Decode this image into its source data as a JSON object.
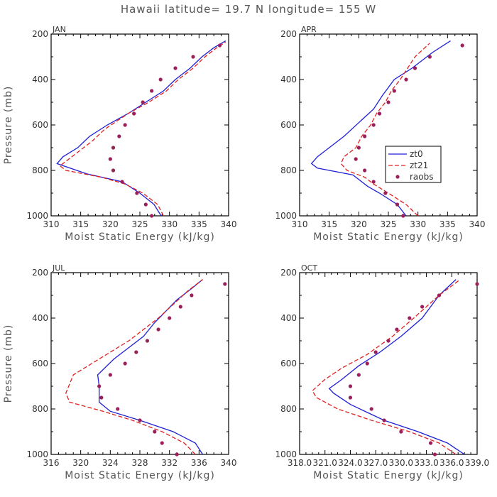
{
  "title": "Hawaii  latitude= 19.7 N longitude= 155 W",
  "colors": {
    "zt0": "#1f1fd6",
    "zt21": "#e02020",
    "raobs": "#9b1f5a"
  },
  "legend": {
    "entries": [
      "zt0",
      "zt21",
      "raobs"
    ],
    "panel": 1,
    "placement": "right-center"
  },
  "chart_data": [
    {
      "type": "line",
      "panel_title": "JAN",
      "xlabel": "Moist Static Energy (kJ/kg)",
      "ylabel": "Pressure (mb)",
      "xlim": [
        310,
        340
      ],
      "ylim": [
        1000,
        200
      ],
      "xticks": [
        310,
        315,
        320,
        325,
        330,
        335,
        340
      ],
      "xticklabels": [
        "310",
        "315",
        "320",
        "325",
        "330",
        "335",
        "340"
      ],
      "yticks": [
        200,
        400,
        600,
        800,
        1000
      ],
      "yticklabels": [
        "200",
        "400",
        "600",
        "800",
        "1000"
      ],
      "series": [
        {
          "name": "zt0",
          "style": "solid",
          "points": [
            [
              328.6,
              1000
            ],
            [
              327.4,
              950
            ],
            [
              325.0,
              900
            ],
            [
              322.0,
              850
            ],
            [
              316.0,
              815
            ],
            [
              311.0,
              770
            ],
            [
              312.0,
              740
            ],
            [
              314.5,
              700
            ],
            [
              316.5,
              650
            ],
            [
              319.5,
              600
            ],
            [
              323.0,
              550
            ],
            [
              326.0,
              500
            ],
            [
              329.0,
              450
            ],
            [
              331.0,
              400
            ],
            [
              333.5,
              350
            ],
            [
              335.5,
              300
            ],
            [
              337.5,
              260
            ],
            [
              339.5,
              230
            ]
          ]
        },
        {
          "name": "zt21",
          "style": "dashed",
          "points": [
            [
              329.0,
              1000
            ],
            [
              328.0,
              950
            ],
            [
              325.5,
              900
            ],
            [
              322.5,
              860
            ],
            [
              318.5,
              830
            ],
            [
              312.5,
              800
            ],
            [
              311.5,
              780
            ],
            [
              312.5,
              760
            ],
            [
              314.5,
              720
            ],
            [
              317.0,
              670
            ],
            [
              319.0,
              620
            ],
            [
              323.0,
              550
            ],
            [
              326.5,
              500
            ],
            [
              329.5,
              450
            ],
            [
              331.5,
              400
            ],
            [
              334.0,
              350
            ],
            [
              336.0,
              300
            ],
            [
              338.0,
              260
            ],
            [
              339.5,
              235
            ]
          ]
        },
        {
          "name": "raobs",
          "style": "markers",
          "points": [
            [
              327.0,
              1000
            ],
            [
              326.0,
              950
            ],
            [
              324.5,
              900
            ],
            [
              322.0,
              850
            ],
            [
              320.5,
              800
            ],
            [
              320.0,
              750
            ],
            [
              320.5,
              700
            ],
            [
              321.5,
              650
            ],
            [
              322.5,
              600
            ],
            [
              324.0,
              550
            ],
            [
              325.5,
              500
            ],
            [
              327.0,
              450
            ],
            [
              328.5,
              400
            ],
            [
              331.0,
              350
            ],
            [
              334.0,
              300
            ],
            [
              338.5,
              250
            ]
          ]
        }
      ]
    },
    {
      "type": "line",
      "panel_title": "APR",
      "xlabel": "Moist Static Energy (kJ/kg)",
      "ylabel": "",
      "xlim": [
        310,
        340
      ],
      "ylim": [
        1000,
        200
      ],
      "xticks": [
        310,
        315,
        320,
        325,
        330,
        335,
        340
      ],
      "xticklabels": [
        "310",
        "315",
        "320",
        "325",
        "330",
        "335",
        "340"
      ],
      "yticks": [
        200,
        400,
        600,
        800,
        1000
      ],
      "yticklabels": [
        "200",
        "400",
        "600",
        "800",
        "1000"
      ],
      "series": [
        {
          "name": "zt0",
          "style": "solid",
          "points": [
            [
              328.0,
              1000
            ],
            [
              326.5,
              950
            ],
            [
              323.5,
              900
            ],
            [
              321.5,
              870
            ],
            [
              319.0,
              820
            ],
            [
              313.0,
              790
            ],
            [
              312.0,
              770
            ],
            [
              313.0,
              740
            ],
            [
              315.0,
              700
            ],
            [
              317.5,
              650
            ],
            [
              320.0,
              590
            ],
            [
              322.5,
              530
            ],
            [
              324.0,
              470
            ],
            [
              326.0,
              400
            ],
            [
              329.0,
              350
            ],
            [
              332.5,
              280
            ],
            [
              335.5,
              230
            ]
          ]
        },
        {
          "name": "zt21",
          "style": "dashed",
          "points": [
            [
              330.0,
              1000
            ],
            [
              328.0,
              950
            ],
            [
              325.0,
              900
            ],
            [
              322.5,
              860
            ],
            [
              321.0,
              830
            ],
            [
              318.0,
              800
            ],
            [
              317.0,
              770
            ],
            [
              317.5,
              740
            ],
            [
              319.5,
              700
            ],
            [
              320.5,
              650
            ],
            [
              322.0,
              600
            ],
            [
              323.0,
              550
            ],
            [
              324.5,
              500
            ],
            [
              325.5,
              450
            ],
            [
              327.0,
              400
            ],
            [
              329.5,
              300
            ],
            [
              332.0,
              240
            ]
          ]
        },
        {
          "name": "raobs",
          "style": "markers",
          "points": [
            [
              327.5,
              1000
            ],
            [
              326.5,
              950
            ],
            [
              324.5,
              900
            ],
            [
              322.5,
              850
            ],
            [
              321.0,
              800
            ],
            [
              319.5,
              750
            ],
            [
              320.0,
              700
            ],
            [
              321.0,
              650
            ],
            [
              322.5,
              600
            ],
            [
              323.5,
              550
            ],
            [
              325.0,
              500
            ],
            [
              326.0,
              450
            ],
            [
              328.0,
              400
            ],
            [
              329.5,
              350
            ],
            [
              332.0,
              300
            ],
            [
              337.5,
              250
            ]
          ]
        }
      ]
    },
    {
      "type": "line",
      "panel_title": "JUL",
      "xlabel": "Moist Static Energy (kJ/kg)",
      "ylabel": "Pressure (mb)",
      "xlim": [
        316,
        340
      ],
      "ylim": [
        1000,
        200
      ],
      "xticks": [
        316,
        320,
        324,
        328,
        332,
        336,
        340
      ],
      "xticklabels": [
        "316",
        "320",
        "324",
        "328",
        "332",
        "336",
        "340"
      ],
      "yticks": [
        200,
        400,
        600,
        800,
        1000
      ],
      "yticklabels": [
        "200",
        "400",
        "600",
        "800",
        "1000"
      ],
      "series": [
        {
          "name": "zt0",
          "style": "solid",
          "points": [
            [
              336.5,
              1000
            ],
            [
              335.5,
              950
            ],
            [
              332.5,
              900
            ],
            [
              328.0,
              850
            ],
            [
              324.0,
              810
            ],
            [
              322.5,
              770
            ],
            [
              322.5,
              700
            ],
            [
              322.3,
              650
            ],
            [
              324.5,
              580
            ],
            [
              326.5,
              530
            ],
            [
              328.5,
              480
            ],
            [
              330.0,
              420
            ],
            [
              331.5,
              370
            ],
            [
              333.0,
              320
            ],
            [
              335.0,
              270
            ],
            [
              336.5,
              230
            ]
          ]
        },
        {
          "name": "zt21",
          "style": "dashed",
          "points": [
            [
              335.5,
              1000
            ],
            [
              334.0,
              950
            ],
            [
              331.0,
              900
            ],
            [
              327.0,
              850
            ],
            [
              323.0,
              810
            ],
            [
              318.5,
              770
            ],
            [
              318.0,
              730
            ],
            [
              319.0,
              650
            ],
            [
              321.5,
              600
            ],
            [
              324.0,
              550
            ],
            [
              326.5,
              500
            ],
            [
              328.5,
              450
            ],
            [
              330.5,
              400
            ],
            [
              332.5,
              340
            ],
            [
              334.5,
              280
            ],
            [
              336.5,
              230
            ]
          ]
        },
        {
          "name": "raobs",
          "style": "markers",
          "points": [
            [
              333.0,
              1000
            ],
            [
              331.0,
              950
            ],
            [
              330.0,
              900
            ],
            [
              328.0,
              850
            ],
            [
              325.0,
              800
            ],
            [
              322.8,
              750
            ],
            [
              322.5,
              700
            ],
            [
              324.0,
              650
            ],
            [
              326.0,
              600
            ],
            [
              327.5,
              550
            ],
            [
              329.0,
              500
            ],
            [
              330.5,
              450
            ],
            [
              332.0,
              400
            ],
            [
              333.5,
              350
            ],
            [
              335.0,
              300
            ],
            [
              339.5,
              250
            ]
          ]
        }
      ]
    },
    {
      "type": "line",
      "panel_title": "OCT",
      "xlabel": "Moist Static Energy (kJ/kg)",
      "ylabel": "",
      "xlim": [
        318.0,
        339.0
      ],
      "ylim": [
        1000,
        200
      ],
      "xticks": [
        318.0,
        321.0,
        324.0,
        327.0,
        330.0,
        333.0,
        336.0,
        339.0
      ],
      "xticklabels": [
        "318.0",
        "321.0",
        "324.0",
        "327.0",
        "330.0",
        "333.0",
        "336.0",
        "339.0"
      ],
      "yticks": [
        200,
        400,
        600,
        800,
        1000
      ],
      "yticklabels": [
        "200",
        "400",
        "600",
        "800",
        "1000"
      ],
      "series": [
        {
          "name": "zt0",
          "style": "solid",
          "points": [
            [
              337.5,
              1000
            ],
            [
              335.5,
              950
            ],
            [
              332.0,
              900
            ],
            [
              328.0,
              850
            ],
            [
              324.0,
              780
            ],
            [
              322.0,
              730
            ],
            [
              321.5,
              710
            ],
            [
              323.0,
              670
            ],
            [
              325.0,
              610
            ],
            [
              327.5,
              550
            ],
            [
              330.0,
              480
            ],
            [
              332.5,
              400
            ],
            [
              334.5,
              300
            ],
            [
              336.5,
              230
            ]
          ]
        },
        {
          "name": "zt21",
          "style": "dashed",
          "points": [
            [
              336.5,
              1000
            ],
            [
              334.5,
              950
            ],
            [
              331.0,
              900
            ],
            [
              326.5,
              850
            ],
            [
              322.5,
              800
            ],
            [
              320.0,
              750
            ],
            [
              319.5,
              720
            ],
            [
              321.0,
              670
            ],
            [
              323.0,
              620
            ],
            [
              326.0,
              560
            ],
            [
              329.0,
              480
            ],
            [
              331.5,
              400
            ],
            [
              334.5,
              300
            ],
            [
              337.0,
              230
            ]
          ]
        },
        {
          "name": "raobs",
          "style": "markers",
          "points": [
            [
              334.0,
              1000
            ],
            [
              333.5,
              950
            ],
            [
              330.0,
              900
            ],
            [
              328.0,
              850
            ],
            [
              326.5,
              800
            ],
            [
              324.0,
              750
            ],
            [
              324.0,
              700
            ],
            [
              325.0,
              650
            ],
            [
              326.0,
              600
            ],
            [
              327.0,
              550
            ],
            [
              328.5,
              500
            ],
            [
              329.5,
              450
            ],
            [
              331.0,
              400
            ],
            [
              332.5,
              350
            ],
            [
              334.5,
              300
            ],
            [
              339.0,
              250
            ]
          ]
        }
      ]
    }
  ]
}
